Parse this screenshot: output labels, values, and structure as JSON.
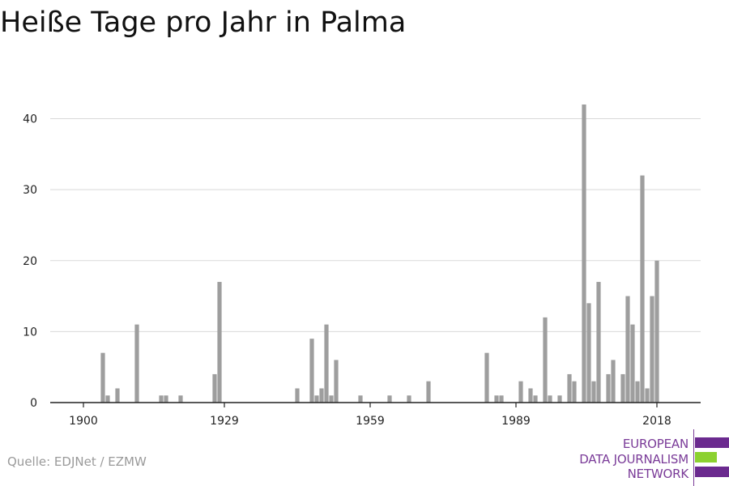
{
  "header": {
    "title": "Heiße Tage pro Jahr in Palma"
  },
  "footer": {
    "source": "Quelle: EDJNet / EZMW"
  },
  "logo": {
    "lines": [
      "EUROPEAN",
      "DATA JOURNALISM",
      "NETWORK"
    ],
    "colors": {
      "purple": "#6b2a8f",
      "green": "#8cd130"
    }
  },
  "colors": {
    "bar": "#9e9e9e",
    "grid": "#d9d9d9",
    "axis": "#222222"
  },
  "chart_data": {
    "type": "bar",
    "title": "Heiße Tage pro Jahr in Palma",
    "xlabel": "",
    "ylabel": "",
    "ylim": [
      0,
      42
    ],
    "xlim": [
      1899,
      2021
    ],
    "grid": true,
    "yticks": [
      0,
      10,
      20,
      30,
      40
    ],
    "xticks": [
      1900,
      1929,
      1959,
      1989,
      2018
    ],
    "series": [
      {
        "x": [
          1904,
          1905,
          1907,
          1911,
          1916,
          1917,
          1920,
          1927,
          1928,
          1944,
          1947,
          1948,
          1949,
          1950,
          1951,
          1952,
          1957,
          1963,
          1967,
          1971,
          1983,
          1985,
          1986,
          1990,
          1992,
          1993,
          1995,
          1996,
          1998,
          2000,
          2001,
          2003,
          2004,
          2005,
          2006,
          2008,
          2009,
          2011,
          2012,
          2013,
          2014,
          2015,
          2016,
          2017,
          2018
        ],
        "values": [
          7,
          1,
          2,
          11,
          1,
          1,
          1,
          4,
          17,
          2,
          9,
          1,
          2,
          11,
          1,
          6,
          1,
          1,
          1,
          3,
          7,
          1,
          1,
          3,
          2,
          1,
          12,
          1,
          1,
          4,
          3,
          42,
          14,
          3,
          17,
          4,
          6,
          4,
          15,
          11,
          3,
          32,
          2,
          15,
          20
        ]
      }
    ]
  }
}
